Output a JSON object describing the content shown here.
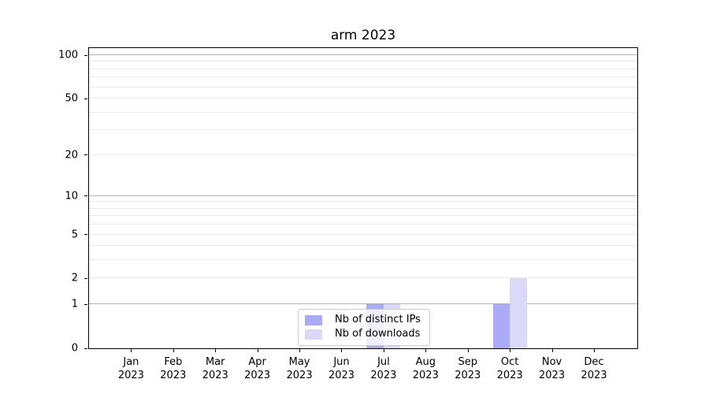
{
  "chart_data": {
    "type": "bar",
    "title": "arm 2023",
    "categories": [
      "Jan 2023",
      "Feb 2023",
      "Mar 2023",
      "Apr 2023",
      "May 2023",
      "Jun 2023",
      "Jul 2023",
      "Aug 2023",
      "Sep 2023",
      "Oct 2023",
      "Nov 2023",
      "Dec 2023"
    ],
    "series": [
      {
        "name": "Nb of distinct IPs",
        "color": "#aaaaf6",
        "values": [
          0,
          0,
          0,
          0,
          0,
          0,
          1,
          0,
          0,
          1,
          0,
          0
        ]
      },
      {
        "name": "Nb of downloads",
        "color": "#dadaf8",
        "values": [
          0,
          0,
          0,
          0,
          0,
          0,
          1,
          0,
          0,
          2,
          0,
          0
        ]
      }
    ],
    "xlabel": "",
    "ylabel": "",
    "yscale": "log1p",
    "ylim": [
      0,
      112
    ],
    "y_ticks": [
      0,
      1,
      2,
      5,
      10,
      20,
      50,
      100
    ],
    "y_gridlines": {
      "major": [
        1,
        10,
        100
      ],
      "minor": [
        2,
        3,
        4,
        5,
        6,
        7,
        8,
        9,
        20,
        30,
        40,
        50,
        60,
        70,
        80,
        90
      ]
    },
    "legend_position": "lower center",
    "grid": true
  },
  "colors": {
    "axis": "#000000",
    "major_grid": "#b3b3b3",
    "minor_grid": "#e9e9e9",
    "legend_border": "#cccccc"
  }
}
